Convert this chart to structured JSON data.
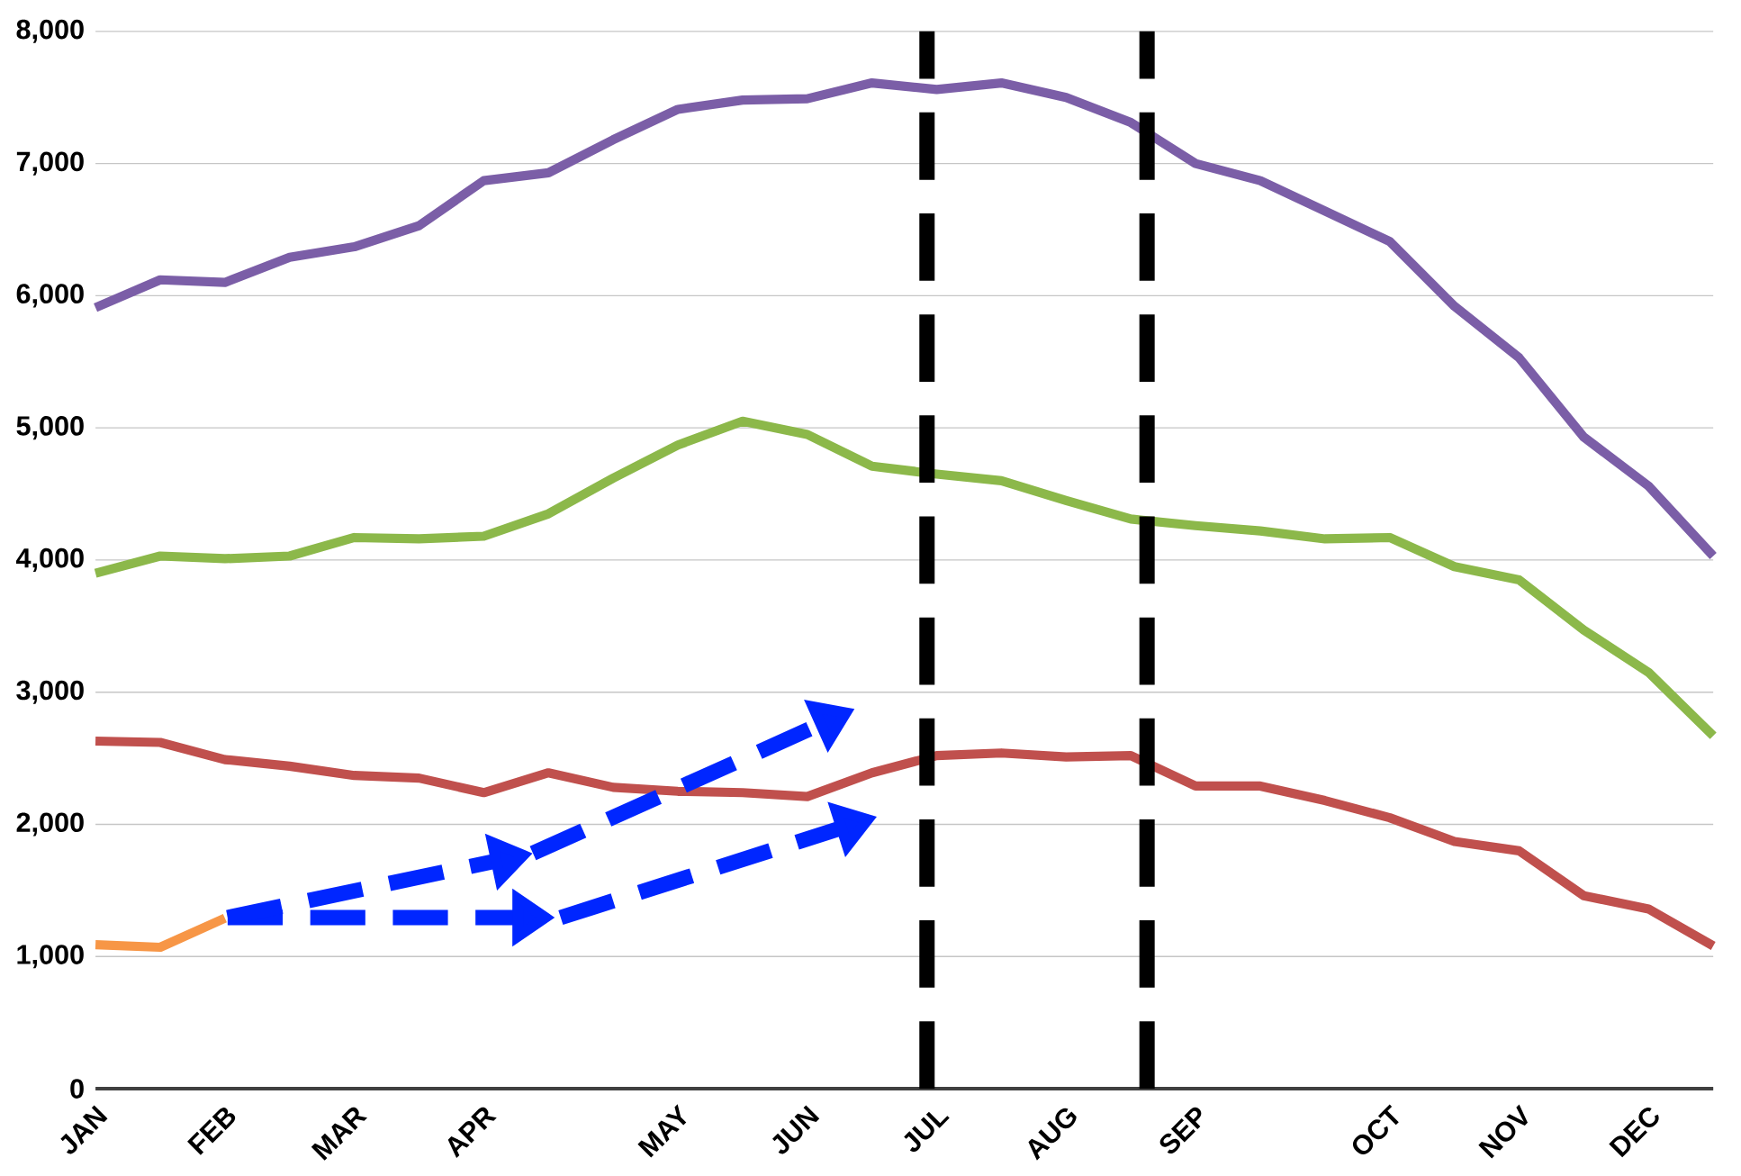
{
  "chart_data": {
    "type": "line",
    "categories": [
      "JAN",
      null,
      "FEB",
      null,
      "MAR",
      null,
      "APR",
      null,
      null,
      "MAY",
      null,
      "JUN",
      null,
      "JUL",
      null,
      "AUG",
      null,
      "SEP",
      null,
      null,
      "OCT",
      null,
      "NOV",
      null,
      "DEC",
      null
    ],
    "series": [
      {
        "color": "#7b5ea7",
        "values": [
          5910,
          6120,
          6100,
          6290,
          6370,
          6530,
          6870,
          6930,
          7180,
          7410,
          7480,
          7490,
          7610,
          7560,
          7610,
          7500,
          7310,
          7000,
          6870,
          6640,
          6410,
          5920,
          5530,
          4930,
          4560,
          4030
        ]
      },
      {
        "color": "#8cb84a",
        "values": [
          3900,
          4030,
          4010,
          4030,
          4170,
          4160,
          4180,
          4350,
          4620,
          4870,
          5050,
          4950,
          4710,
          4650,
          4600,
          4450,
          4310,
          4260,
          4220,
          4160,
          4170,
          3950,
          3850,
          3470,
          3150,
          2670
        ]
      },
      {
        "color": "#c0504d",
        "values": [
          2630,
          2620,
          2490,
          2440,
          2370,
          2350,
          2240,
          2390,
          2280,
          2250,
          2240,
          2210,
          2390,
          2520,
          2540,
          2510,
          2520,
          2290,
          2290,
          2180,
          2050,
          1870,
          1800,
          1460,
          1360,
          1080
        ]
      },
      {
        "color": "#f79646",
        "values": [
          1090,
          1070,
          1290,
          null,
          null,
          null,
          null,
          null,
          null,
          null,
          null,
          null,
          null,
          null,
          null,
          null,
          null,
          null,
          null,
          null,
          null,
          null,
          null,
          null,
          null,
          null
        ]
      }
    ],
    "ylim": [
      0,
      8000
    ],
    "yticks": [
      0,
      {
        "value": 1000,
        "label": "1,000"
      },
      {
        "value": 2000,
        "label": "2,000"
      },
      {
        "value": 3000,
        "label": "3,000"
      },
      {
        "value": 4000,
        "label": "4,000"
      },
      {
        "value": 5000,
        "label": "5,000"
      },
      {
        "value": 6000,
        "label": "6,000"
      },
      {
        "value": 7000,
        "label": "7,000"
      },
      {
        "value": 8000,
        "label": "8,000"
      }
    ],
    "grid": "y",
    "marker": "none",
    "line_style": "solid"
  }
}
